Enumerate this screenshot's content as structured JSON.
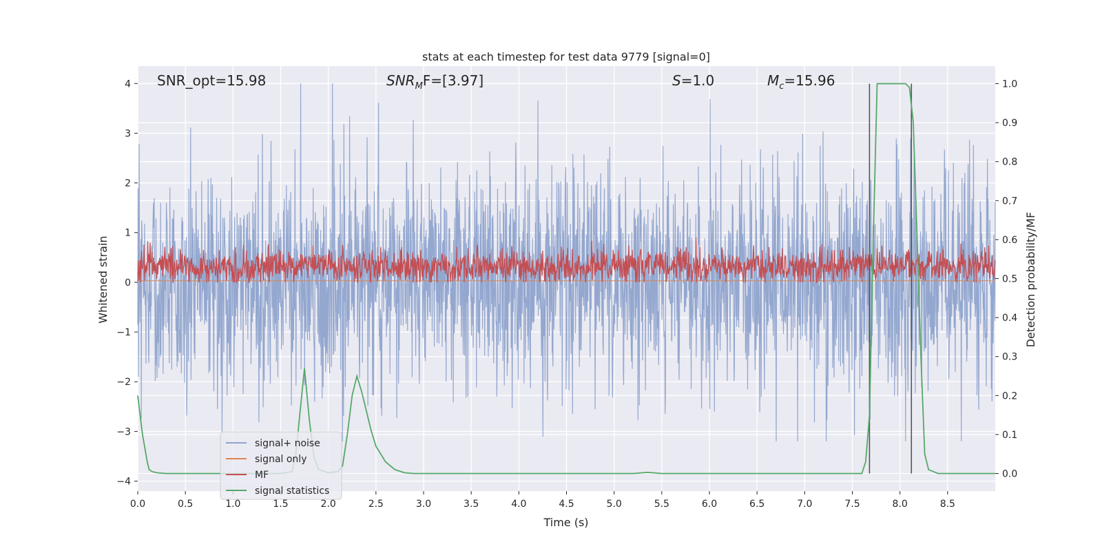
{
  "chart_data": {
    "type": "line",
    "title": "stats at each timestep for test data 9779 [signal=0]",
    "xlabel": "Time (s)",
    "ylabel_left": "Whitened strain",
    "ylabel_right": "Detection probability/MF",
    "xlim": [
      0.0,
      9.0
    ],
    "ylim_left": [
      -4.2,
      4.35
    ],
    "ylim_right": [
      -0.045,
      1.045
    ],
    "x_ticks": [
      0.0,
      0.5,
      1.0,
      1.5,
      2.0,
      2.5,
      3.0,
      3.5,
      4.0,
      4.5,
      5.0,
      5.5,
      6.0,
      6.5,
      7.0,
      7.5,
      8.0,
      8.5
    ],
    "x_tick_labels": [
      "0.0",
      "0.5",
      "1.0",
      "1.5",
      "2.0",
      "2.5",
      "3.0",
      "3.5",
      "4.0",
      "4.5",
      "5.0",
      "5.5",
      "6.0",
      "6.5",
      "7.0",
      "7.5",
      "8.0",
      "8.5"
    ],
    "y_left_ticks": [
      4,
      3,
      2,
      1,
      0,
      -1,
      -2,
      -3,
      -4
    ],
    "y_left_tick_labels": [
      "4",
      "3",
      "2",
      "1",
      "0",
      "−1",
      "−2",
      "−3",
      "−4"
    ],
    "y_right_ticks": [
      1.0,
      0.9,
      0.8,
      0.7,
      0.6,
      0.5,
      0.4,
      0.3,
      0.2,
      0.1,
      0.0
    ],
    "y_right_tick_labels": [
      "1.0",
      "0.9",
      "0.8",
      "0.7",
      "0.6",
      "0.5",
      "0.4",
      "0.3",
      "0.2",
      "0.1",
      "0.0"
    ],
    "grid": true,
    "legend_position": "lower-left",
    "annotations": {
      "snr_opt": "SNR_opt=15.98",
      "snr_mf_main": "SNR",
      "snr_mf_sub": "M",
      "snr_mf_rest": "F=[3.97]",
      "s_main": "S",
      "s_rest": "=1.0",
      "mc_main": "M",
      "mc_sub": "c",
      "mc_rest": "=15.96"
    },
    "series": [
      {
        "name": "signal+ noise",
        "color": "#8ea3cc",
        "axis": "left",
        "note": "dense noisy strain trace, roughly within -2.5..2.5 with spikes up to 4.0",
        "upper_envelope_base": 1.4,
        "lower_envelope_base": -1.4,
        "max": 4.0,
        "min": -3.2
      },
      {
        "name": "signal only",
        "color": "#dd8452",
        "axis": "left",
        "values_x": [
          0.0,
          9.0
        ],
        "values_y": [
          0.03,
          0.03
        ]
      },
      {
        "name": "MF",
        "color": "#c44e52",
        "axis": "left",
        "note": "matched-filter output fluctuating between about 0.0 and 0.9",
        "min": 0.0,
        "max": 0.95
      },
      {
        "name": "signal statistics",
        "color": "#55a868",
        "axis": "right",
        "x": [
          0.0,
          0.05,
          0.1,
          0.12,
          0.15,
          0.2,
          0.3,
          0.5,
          1.0,
          1.5,
          1.62,
          1.66,
          1.7,
          1.75,
          1.8,
          1.85,
          1.9,
          2.0,
          2.1,
          2.15,
          2.2,
          2.25,
          2.3,
          2.35,
          2.4,
          2.45,
          2.5,
          2.55,
          2.6,
          2.7,
          2.8,
          2.9,
          3.0,
          5.2,
          5.35,
          5.5,
          7.6,
          7.64,
          7.68,
          7.72,
          7.76,
          8.0,
          8.06,
          8.1,
          8.14,
          8.18,
          8.22,
          8.26,
          8.3,
          8.4,
          9.0
        ],
        "y": [
          0.2,
          0.1,
          0.03,
          0.01,
          0.005,
          0.002,
          0.0,
          0.0,
          0.0,
          0.0,
          0.005,
          0.05,
          0.15,
          0.27,
          0.14,
          0.04,
          0.01,
          0.002,
          0.005,
          0.02,
          0.1,
          0.2,
          0.25,
          0.21,
          0.16,
          0.11,
          0.07,
          0.05,
          0.03,
          0.01,
          0.002,
          0.0,
          0.0,
          0.0,
          0.003,
          0.0,
          0.0,
          0.03,
          0.15,
          0.6,
          1.0,
          1.0,
          1.0,
          0.99,
          0.9,
          0.6,
          0.3,
          0.05,
          0.01,
          0.0,
          0.0
        ]
      }
    ],
    "vertical_markers": {
      "color": "#555555",
      "x": [
        7.68,
        8.12
      ],
      "y_range_right": [
        0.0,
        1.0
      ]
    },
    "legend": [
      {
        "label": "signal+ noise",
        "color": "#8ea3cc"
      },
      {
        "label": "signal only",
        "color": "#dd8452"
      },
      {
        "label": "MF",
        "color": "#c44e52"
      },
      {
        "label": "signal statistics",
        "color": "#55a868"
      }
    ]
  }
}
